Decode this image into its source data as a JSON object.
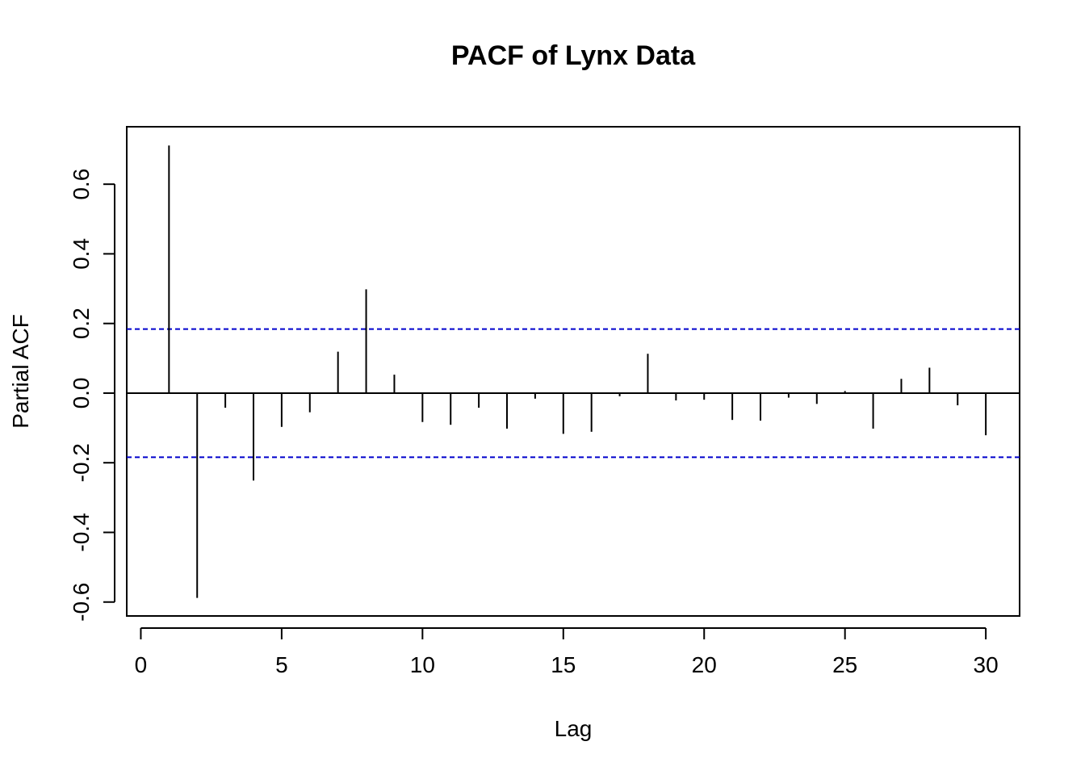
{
  "chart_data": {
    "type": "bar",
    "title": "PACF of Lynx Data",
    "xlabel": "Lag",
    "ylabel": "Partial ACF",
    "xlim": [
      -0.5,
      31.2
    ],
    "ylim": [
      -0.64,
      0.765
    ],
    "xticks": [
      0,
      5,
      10,
      15,
      20,
      25,
      30
    ],
    "yticks": [
      -0.6,
      -0.4,
      -0.2,
      0.0,
      0.2,
      0.4,
      0.6
    ],
    "ytick_labels": [
      "-0.6",
      "-0.4",
      "-0.2",
      "0.0",
      "0.2",
      "0.4",
      "0.6"
    ],
    "x": [
      1,
      2,
      3,
      4,
      5,
      6,
      7,
      8,
      9,
      10,
      11,
      12,
      13,
      14,
      15,
      16,
      17,
      18,
      19,
      20,
      21,
      22,
      23,
      24,
      25,
      26,
      27,
      28,
      29,
      30
    ],
    "values": [
      0.711,
      -0.588,
      -0.042,
      -0.251,
      -0.097,
      -0.055,
      0.119,
      0.298,
      0.053,
      -0.083,
      -0.091,
      -0.042,
      -0.102,
      -0.016,
      -0.117,
      -0.111,
      -0.009,
      0.113,
      -0.021,
      -0.019,
      -0.077,
      -0.079,
      -0.013,
      -0.031,
      0.006,
      -0.102,
      0.041,
      0.073,
      -0.035,
      -0.121
    ],
    "confidence_bound": 0.184,
    "colors": {
      "bars": "#000000",
      "confidence": "#0000cc",
      "zero_line": "#000000"
    }
  }
}
